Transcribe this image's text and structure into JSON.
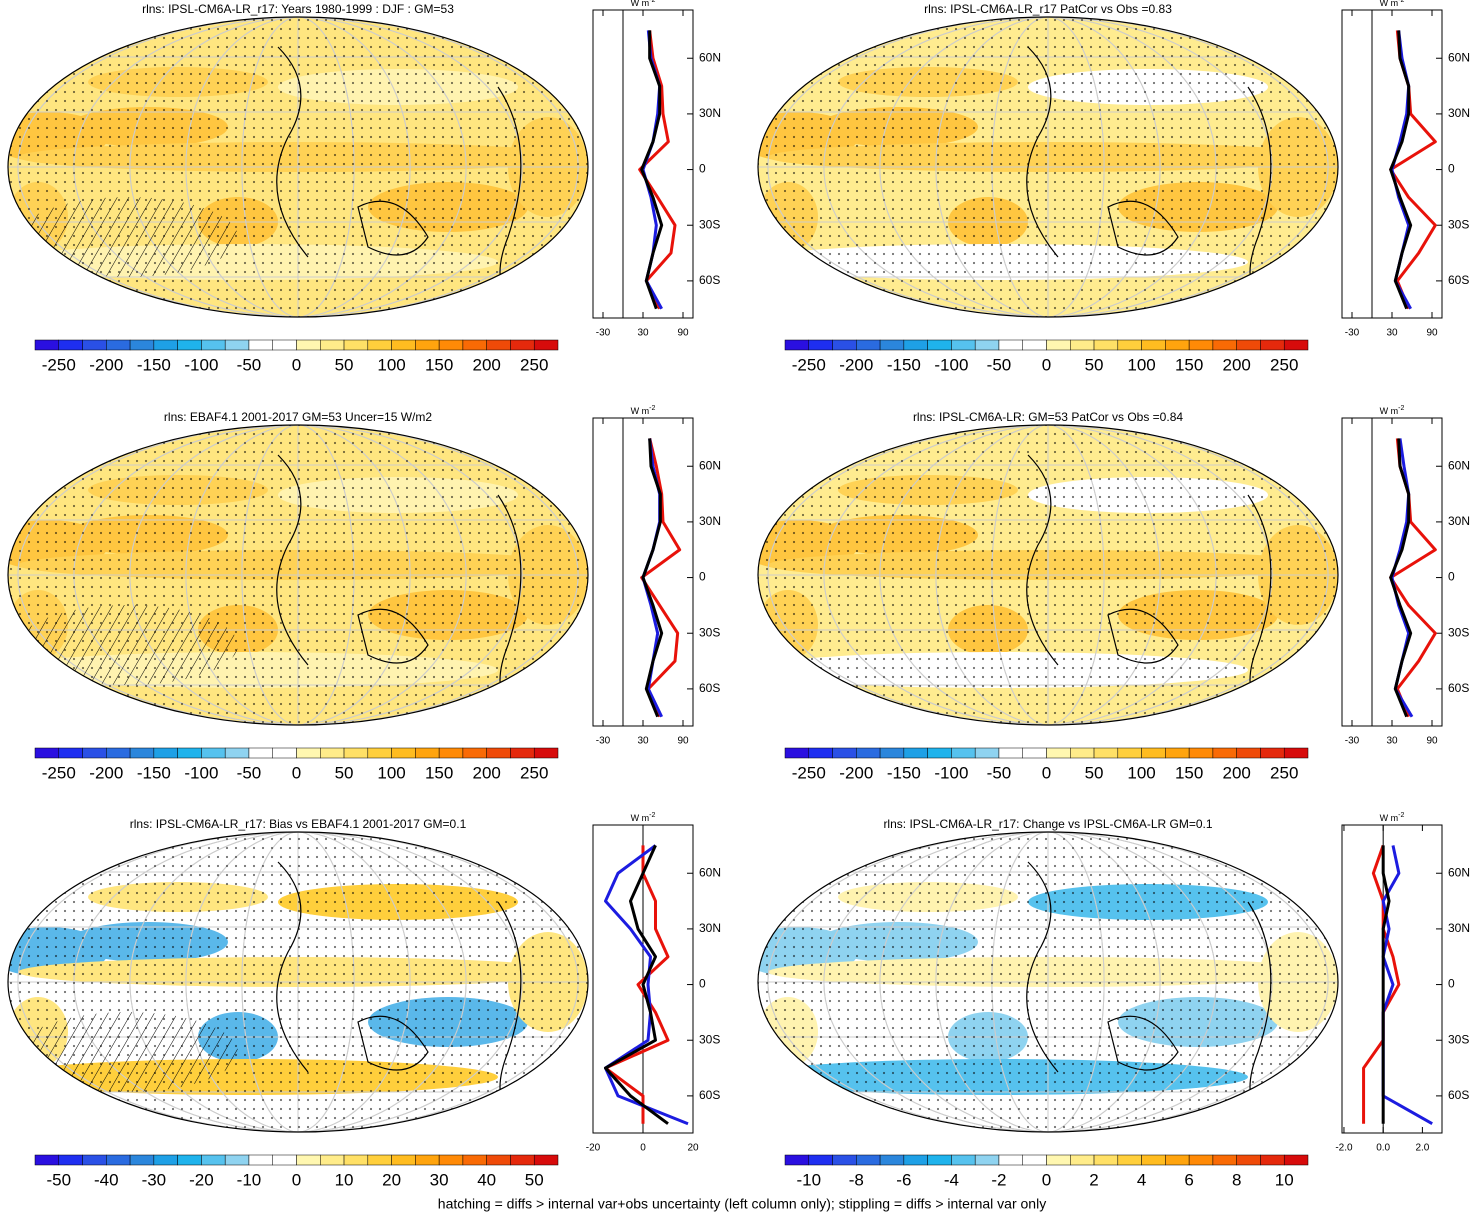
{
  "chart_data": [
    {
      "type": "line",
      "title": "rlns: IPSL-CM6A-LR_r17: Years 1980-1999 : DJF : GM=53",
      "colorbar": {
        "lim": [
          -275,
          275
        ],
        "ticks": [
          -250,
          -200,
          -150,
          -100,
          -50,
          0,
          50,
          100,
          150,
          200,
          250
        ],
        "colors": [
          "#2a0fe0",
          "#1e2ef0",
          "#2a50e6",
          "#2a6be0",
          "#2b86dc",
          "#1ea0e6",
          "#1fb3ec",
          "#56c2ee",
          "#8fd3f0",
          "#ffffff",
          "#ffffff",
          "#fff7b0",
          "#ffec8a",
          "#ffe066",
          "#ffcf3c",
          "#ffbc20",
          "#ffa40e",
          "#ff8a06",
          "#f96a05",
          "#ef4a08",
          "#e5290c",
          "#d70b0b"
        ]
      },
      "x_label": "W m",
      "x_label_sup": "-2",
      "xlim": [
        -45,
        105
      ],
      "xticks": [
        -30,
        30,
        90
      ],
      "ylim": [
        -80,
        86
      ],
      "yticks": [
        {
          "value": 60,
          "label": "60N"
        },
        {
          "value": 30,
          "label": "30N"
        },
        0,
        {
          "value": -30,
          "label": "30S"
        },
        {
          "value": -60,
          "label": "60S"
        }
      ],
      "y": [
        75,
        60,
        45,
        30,
        15,
        0,
        -15,
        -30,
        -45,
        -60,
        -75
      ],
      "series": [
        {
          "color": "#e8120a",
          "values": [
            40,
            45,
            58,
            60,
            68,
            25,
            52,
            78,
            72,
            35,
            55
          ]
        },
        {
          "color": "#1c1ce0",
          "values": [
            38,
            42,
            55,
            52,
            45,
            30,
            42,
            50,
            45,
            35,
            58
          ]
        },
        {
          "color": "#000000",
          "values": [
            40,
            40,
            55,
            55,
            45,
            28,
            45,
            58,
            45,
            35,
            50
          ]
        }
      ]
    },
    {
      "type": "line",
      "title": "rlns: IPSL-CM6A-LR_r17 PatCor vs Obs =0.83",
      "colorbar": {
        "lim": [
          -275,
          275
        ],
        "ticks": [
          -250,
          -200,
          -150,
          -100,
          -50,
          0,
          50,
          100,
          150,
          200,
          250
        ],
        "colors": [
          "#2a0fe0",
          "#1e2ef0",
          "#2a50e6",
          "#2a6be0",
          "#2b86dc",
          "#1ea0e6",
          "#1fb3ec",
          "#56c2ee",
          "#8fd3f0",
          "#ffffff",
          "#ffffff",
          "#fff7b0",
          "#ffec8a",
          "#ffe066",
          "#ffcf3c",
          "#ffbc20",
          "#ffa40e",
          "#ff8a06",
          "#f96a05",
          "#ef4a08",
          "#e5290c",
          "#d70b0b"
        ]
      },
      "x_label": "W m",
      "x_label_sup": "-2",
      "xlim": [
        -45,
        105
      ],
      "xticks": [
        -30,
        30,
        90
      ],
      "ylim": [
        -80,
        86
      ],
      "yticks": [
        {
          "value": 60,
          "label": "60N"
        },
        {
          "value": 30,
          "label": "30N"
        },
        0,
        {
          "value": -30,
          "label": "30S"
        },
        {
          "value": -60,
          "label": "60S"
        }
      ],
      "y": [
        75,
        60,
        45,
        30,
        15,
        0,
        -15,
        -30,
        -45,
        -60,
        -75
      ],
      "series": [
        {
          "color": "#e8120a",
          "values": [
            38,
            42,
            55,
            58,
            95,
            28,
            55,
            95,
            70,
            38,
            55
          ]
        },
        {
          "color": "#1c1ce0",
          "values": [
            40,
            45,
            55,
            52,
            42,
            30,
            40,
            55,
            45,
            35,
            58
          ]
        },
        {
          "color": "#000000",
          "values": [
            40,
            42,
            55,
            55,
            45,
            28,
            42,
            58,
            45,
            35,
            52
          ]
        }
      ]
    },
    {
      "type": "line",
      "title": "rlns: EBAF4.1 2001-2017 GM=53 Uncer=15 W/m2",
      "colorbar": {
        "lim": [
          -275,
          275
        ],
        "ticks": [
          -250,
          -200,
          -150,
          -100,
          -50,
          0,
          50,
          100,
          150,
          200,
          250
        ],
        "colors": [
          "#2a0fe0",
          "#1e2ef0",
          "#2a50e6",
          "#2a6be0",
          "#2b86dc",
          "#1ea0e6",
          "#1fb3ec",
          "#56c2ee",
          "#8fd3f0",
          "#ffffff",
          "#ffffff",
          "#fff7b0",
          "#ffec8a",
          "#ffe066",
          "#ffcf3c",
          "#ffbc20",
          "#ffa40e",
          "#ff8a06",
          "#f96a05",
          "#ef4a08",
          "#e5290c",
          "#d70b0b"
        ]
      },
      "x_label": "W m",
      "x_label_sup": "-2",
      "xlim": [
        -45,
        105
      ],
      "xticks": [
        -30,
        30,
        90
      ],
      "ylim": [
        -80,
        86
      ],
      "yticks": [
        {
          "value": 60,
          "label": "60N"
        },
        {
          "value": 30,
          "label": "30N"
        },
        0,
        {
          "value": -30,
          "label": "30S"
        },
        {
          "value": -60,
          "label": "60S"
        }
      ],
      "y": [
        75,
        60,
        45,
        30,
        15,
        0,
        -15,
        -30,
        -45,
        -60,
        -75
      ],
      "series": [
        {
          "color": "#e8120a",
          "values": [
            40,
            50,
            58,
            60,
            85,
            28,
            55,
            82,
            78,
            38,
            55
          ]
        },
        {
          "color": "#1c1ce0",
          "values": [
            40,
            45,
            55,
            55,
            45,
            30,
            42,
            52,
            45,
            38,
            58
          ]
        },
        {
          "color": "#000000",
          "values": [
            40,
            42,
            56,
            56,
            45,
            30,
            45,
            58,
            45,
            35,
            52
          ]
        }
      ]
    },
    {
      "type": "line",
      "title": "rlns: IPSL-CM6A-LR: GM=53 PatCor vs Obs =0.84",
      "colorbar": {
        "lim": [
          -275,
          275
        ],
        "ticks": [
          -250,
          -200,
          -150,
          -100,
          -50,
          0,
          50,
          100,
          150,
          200,
          250
        ],
        "colors": [
          "#2a0fe0",
          "#1e2ef0",
          "#2a50e6",
          "#2a6be0",
          "#2b86dc",
          "#1ea0e6",
          "#1fb3ec",
          "#56c2ee",
          "#8fd3f0",
          "#ffffff",
          "#ffffff",
          "#fff7b0",
          "#ffec8a",
          "#ffe066",
          "#ffcf3c",
          "#ffbc20",
          "#ffa40e",
          "#ff8a06",
          "#f96a05",
          "#ef4a08",
          "#e5290c",
          "#d70b0b"
        ]
      },
      "x_label": "W m",
      "x_label_sup": "-2",
      "xlim": [
        -45,
        105
      ],
      "xticks": [
        -30,
        30,
        90
      ],
      "ylim": [
        -80,
        86
      ],
      "yticks": [
        {
          "value": 60,
          "label": "60N"
        },
        {
          "value": 30,
          "label": "30N"
        },
        0,
        {
          "value": -30,
          "label": "30S"
        },
        {
          "value": -60,
          "label": "60S"
        }
      ],
      "y": [
        75,
        60,
        45,
        30,
        15,
        0,
        -15,
        -30,
        -45,
        -60,
        -75
      ],
      "series": [
        {
          "color": "#e8120a",
          "values": [
            38,
            42,
            55,
            58,
            95,
            28,
            55,
            95,
            70,
            38,
            55
          ]
        },
        {
          "color": "#1c1ce0",
          "values": [
            42,
            48,
            55,
            52,
            42,
            30,
            40,
            55,
            45,
            35,
            60
          ]
        },
        {
          "color": "#000000",
          "values": [
            40,
            42,
            55,
            55,
            45,
            28,
            42,
            58,
            45,
            35,
            52
          ]
        }
      ]
    },
    {
      "type": "line",
      "title": "rlns: IPSL-CM6A-LR_r17: Bias vs EBAF4.1 2001-2017 GM=0.1",
      "colorbar": {
        "lim": [
          -55,
          55
        ],
        "ticks": [
          -50,
          -40,
          -30,
          -20,
          -10,
          0,
          10,
          20,
          30,
          40,
          50
        ],
        "colors": [
          "#2a0fe0",
          "#1e2ef0",
          "#2a50e6",
          "#2a6be0",
          "#2b86dc",
          "#1ea0e6",
          "#1fb3ec",
          "#56c2ee",
          "#8fd3f0",
          "#ffffff",
          "#ffffff",
          "#fff7b0",
          "#ffec8a",
          "#ffe066",
          "#ffcf3c",
          "#ffbc20",
          "#ffa40e",
          "#ff8a06",
          "#f96a05",
          "#ef4a08",
          "#e5290c",
          "#d70b0b"
        ]
      },
      "x_label": "W m",
      "x_label_sup": "-2",
      "xlim": [
        -20,
        20
      ],
      "xticks": [
        -20,
        0,
        20
      ],
      "ylim": [
        -80,
        86
      ],
      "yticks": [
        {
          "value": 60,
          "label": "60N"
        },
        {
          "value": 30,
          "label": "30N"
        },
        0,
        {
          "value": -30,
          "label": "30S"
        },
        {
          "value": -60,
          "label": "60S"
        }
      ],
      "y": [
        75,
        60,
        45,
        30,
        15,
        0,
        -15,
        -30,
        -45,
        -60,
        -75
      ],
      "series": [
        {
          "color": "#e8120a",
          "values": [
            0,
            0,
            5,
            5,
            10,
            -2,
            5,
            10,
            -15,
            0,
            0
          ]
        },
        {
          "color": "#1c1ce0",
          "values": [
            5,
            -10,
            -15,
            -5,
            3,
            2,
            3,
            2,
            -15,
            -10,
            18
          ]
        },
        {
          "color": "#000000",
          "values": [
            5,
            0,
            -5,
            -2,
            5,
            0,
            3,
            5,
            -15,
            -5,
            10
          ]
        }
      ]
    },
    {
      "type": "line",
      "title": "rlns: IPSL-CM6A-LR_r17: Change vs IPSL-CM6A-LR GM=0.1",
      "colorbar": {
        "lim": [
          -11,
          11
        ],
        "ticks": [
          -10,
          -8,
          -6,
          -4,
          -2,
          0,
          2,
          4,
          6,
          8,
          10
        ],
        "colors": [
          "#2a0fe0",
          "#1e2ef0",
          "#2a50e6",
          "#2a6be0",
          "#2b86dc",
          "#1ea0e6",
          "#1fb3ec",
          "#56c2ee",
          "#8fd3f0",
          "#ffffff",
          "#ffffff",
          "#fff7b0",
          "#ffec8a",
          "#ffe066",
          "#ffcf3c",
          "#ffbc20",
          "#ffa40e",
          "#ff8a06",
          "#f96a05",
          "#ef4a08",
          "#e5290c",
          "#d70b0b"
        ]
      },
      "x_label": "W m",
      "x_label_sup": "-2",
      "xlim": [
        -2.1,
        3.0
      ],
      "xticks": [
        {
          "value": -2,
          "label": "-2.0"
        },
        {
          "value": 0,
          "label": "0.0"
        },
        {
          "value": 2,
          "label": "2.0"
        }
      ],
      "ylim": [
        -80,
        86
      ],
      "yticks": [
        {
          "value": 60,
          "label": "60N"
        },
        {
          "value": 30,
          "label": "30N"
        },
        0,
        {
          "value": -30,
          "label": "30S"
        },
        {
          "value": -60,
          "label": "60S"
        }
      ],
      "y": [
        75,
        60,
        45,
        30,
        15,
        0,
        -15,
        -30,
        -45,
        -60,
        -75
      ],
      "series": [
        {
          "color": "#e8120a",
          "values": [
            0,
            -0.5,
            0,
            0,
            0.5,
            0.8,
            0,
            0,
            -1,
            -1,
            -1
          ]
        },
        {
          "color": "#1c1ce0",
          "values": [
            0.5,
            0.8,
            0,
            0.3,
            0,
            0.5,
            0,
            0,
            0,
            0,
            2.5
          ]
        },
        {
          "color": "#000000",
          "values": [
            0,
            0,
            0.3,
            0,
            0,
            0,
            0,
            0,
            0,
            0,
            0
          ]
        }
      ]
    }
  ],
  "note": "hatching = diffs > internal var+obs uncertainty (left column only); stippling = diffs > internal var only"
}
